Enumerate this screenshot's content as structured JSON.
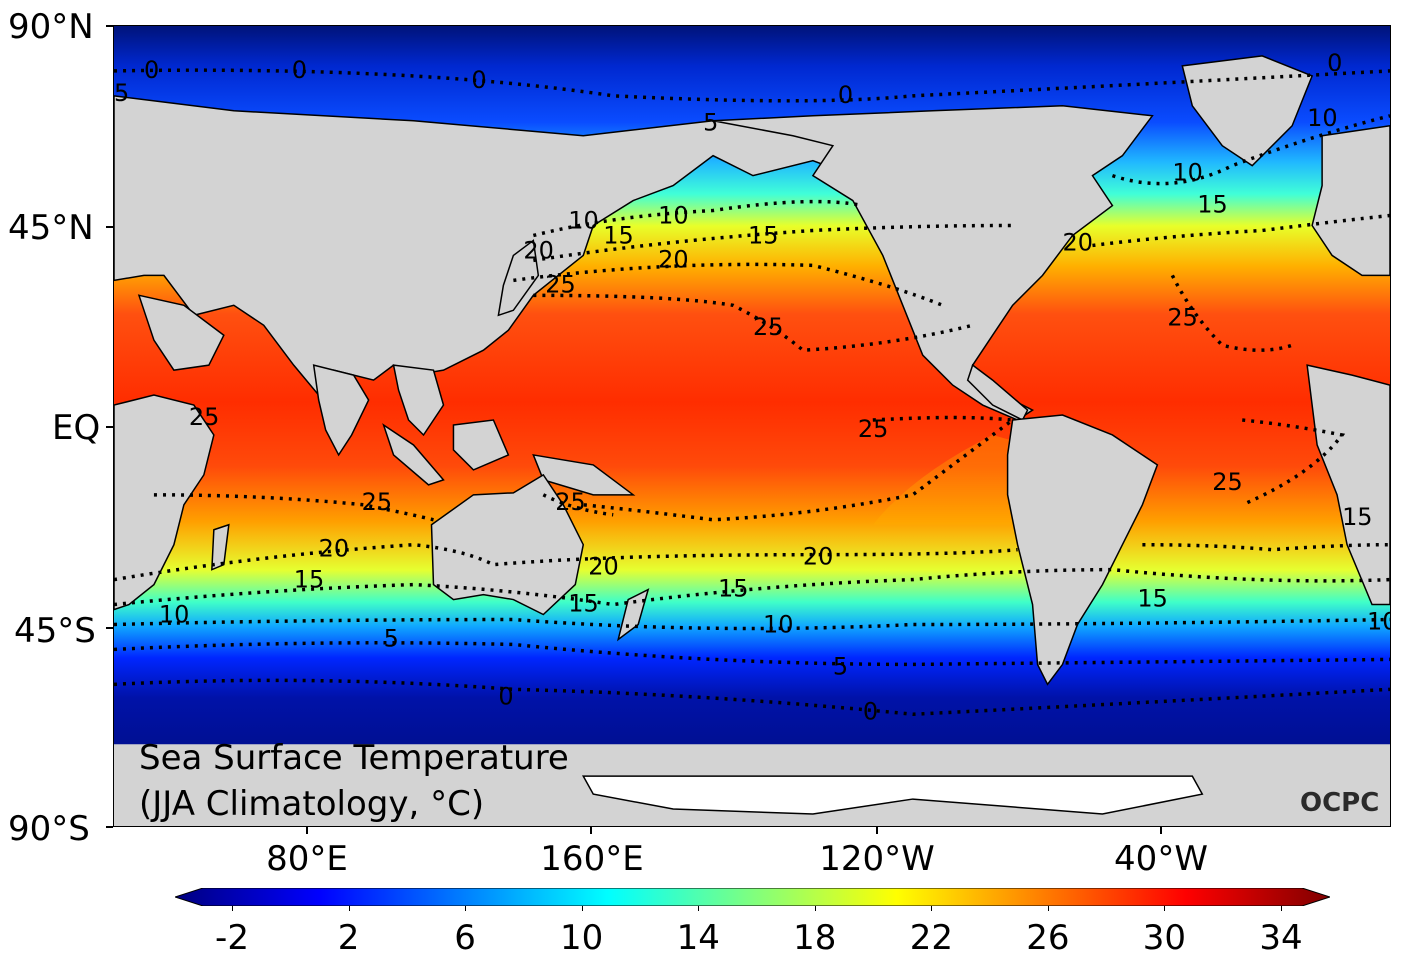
{
  "map": {
    "title_line1": "Sea Surface Temperature",
    "title_line2": "(JJA Climatology, °C)",
    "credit": "OCPC",
    "lat_labels": [
      "90°N",
      "45°N",
      "EQ",
      "45°S",
      "90°S"
    ],
    "lon_labels": [
      "80°E",
      "160°E",
      "120°W",
      "40°W"
    ],
    "contour_labels": [
      "0",
      "0",
      "0",
      "0",
      "0",
      "0",
      "0",
      "5",
      "5",
      "5",
      "5",
      "10",
      "10",
      "10",
      "10",
      "10",
      "10",
      "10",
      "15",
      "15",
      "15",
      "15",
      "15",
      "15",
      "15",
      "15",
      "20",
      "20",
      "20",
      "20",
      "20",
      "20",
      "25",
      "25",
      "25",
      "25",
      "25",
      "25",
      "25",
      "25"
    ]
  },
  "colorbar": {
    "ticks": [
      "-2",
      "2",
      "6",
      "10",
      "14",
      "18",
      "22",
      "26",
      "30",
      "34"
    ],
    "range": [
      -2,
      34
    ],
    "colors": [
      "#00007f",
      "#0000ff",
      "#007fff",
      "#00ffff",
      "#7fff7f",
      "#ffff00",
      "#ff7f00",
      "#ff0000",
      "#7f0000"
    ]
  }
}
